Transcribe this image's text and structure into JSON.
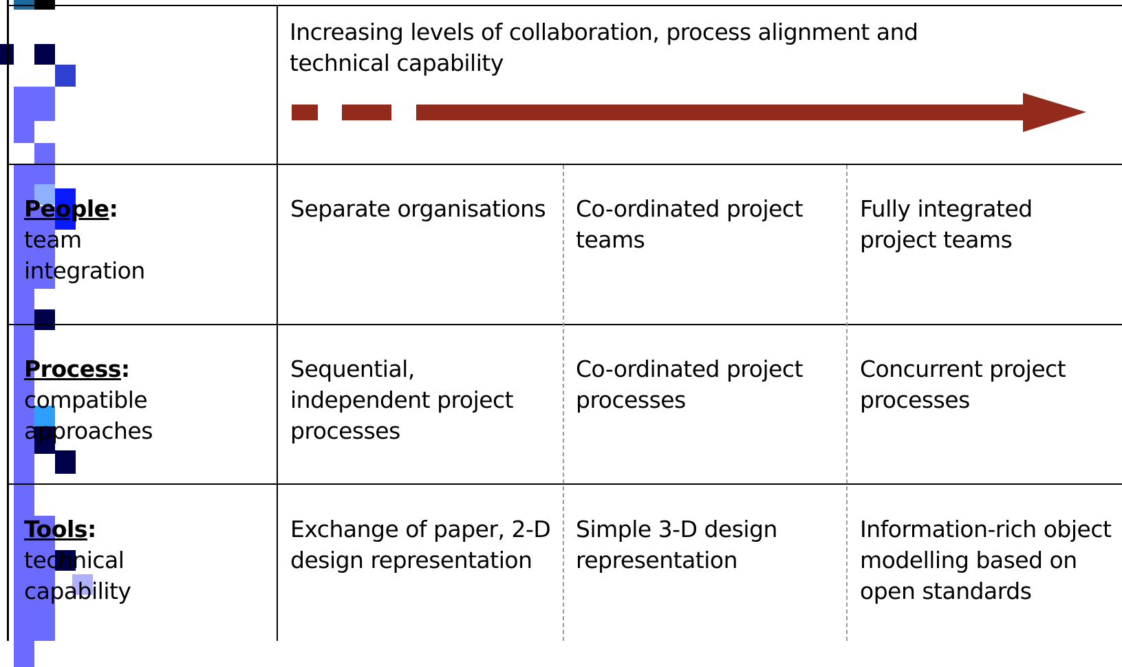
{
  "header": {
    "text": "Increasing levels of collaboration, process alignment and technical capability"
  },
  "rows": [
    {
      "term": "People",
      "punct": ":",
      "sublabel": "team integration",
      "cells": [
        "Separate organisations",
        "Co-ordinated project teams",
        "Fully integrated project teams"
      ]
    },
    {
      "term": "Process",
      "punct": ":",
      "sublabel": "compatible approaches",
      "cells": [
        "Sequential, independent project processes",
        "Co-ordinated project processes",
        "Concurrent project processes"
      ]
    },
    {
      "term": "Tools",
      "punct": ":",
      "sublabel": "technical capability",
      "cells": [
        "Exchange of paper, 2-D design representation",
        "Simple 3-D design representation",
        "Information-rich object modelling based on open standards"
      ]
    }
  ]
}
